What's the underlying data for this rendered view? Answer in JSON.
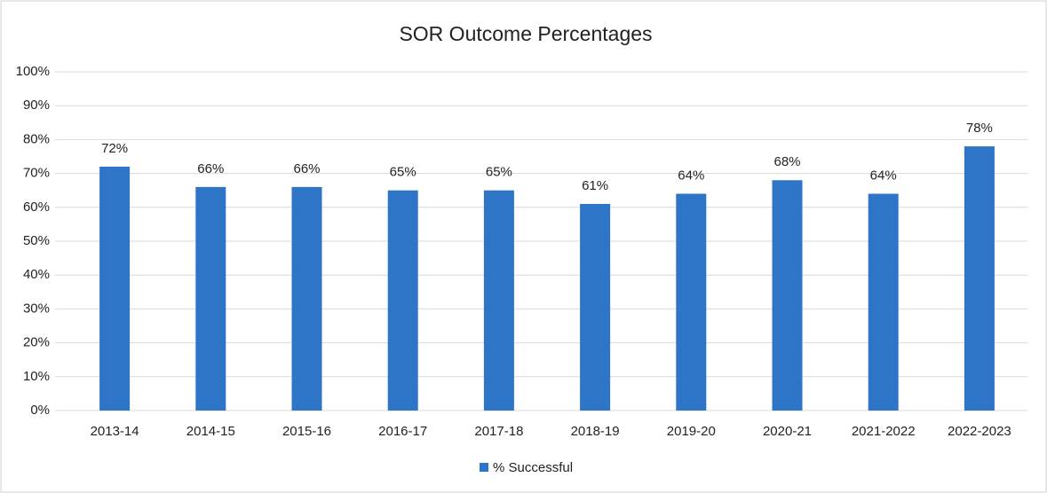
{
  "chart_data": {
    "type": "bar",
    "title": "SOR Outcome Percentages",
    "categories": [
      "2013-14",
      "2014-15",
      "2015-16",
      "2016-17",
      "2017-18",
      "2018-19",
      "2019-20",
      "2020-21",
      "2021-2022",
      "2022-2023"
    ],
    "series": [
      {
        "name": "% Successful",
        "color": "#2e75c7",
        "values": [
          72,
          66,
          66,
          65,
          65,
          61,
          64,
          68,
          64,
          78
        ],
        "value_labels": [
          "72%",
          "66%",
          "66%",
          "65%",
          "65%",
          "61%",
          "64%",
          "68%",
          "64%",
          "78%"
        ]
      }
    ],
    "ylim": [
      0,
      100
    ],
    "yticks": [
      {
        "value": 0,
        "label": "0%"
      },
      {
        "value": 10,
        "label": "10%"
      },
      {
        "value": 20,
        "label": "20%"
      },
      {
        "value": 30,
        "label": "30%"
      },
      {
        "value": 40,
        "label": "40%"
      },
      {
        "value": 50,
        "label": "50%"
      },
      {
        "value": 60,
        "label": "60%"
      },
      {
        "value": 70,
        "label": "70%"
      },
      {
        "value": 80,
        "label": "80%"
      },
      {
        "value": 90,
        "label": "90%"
      },
      {
        "value": 100,
        "label": "100%"
      }
    ],
    "grid": true,
    "legend": "bottom"
  }
}
